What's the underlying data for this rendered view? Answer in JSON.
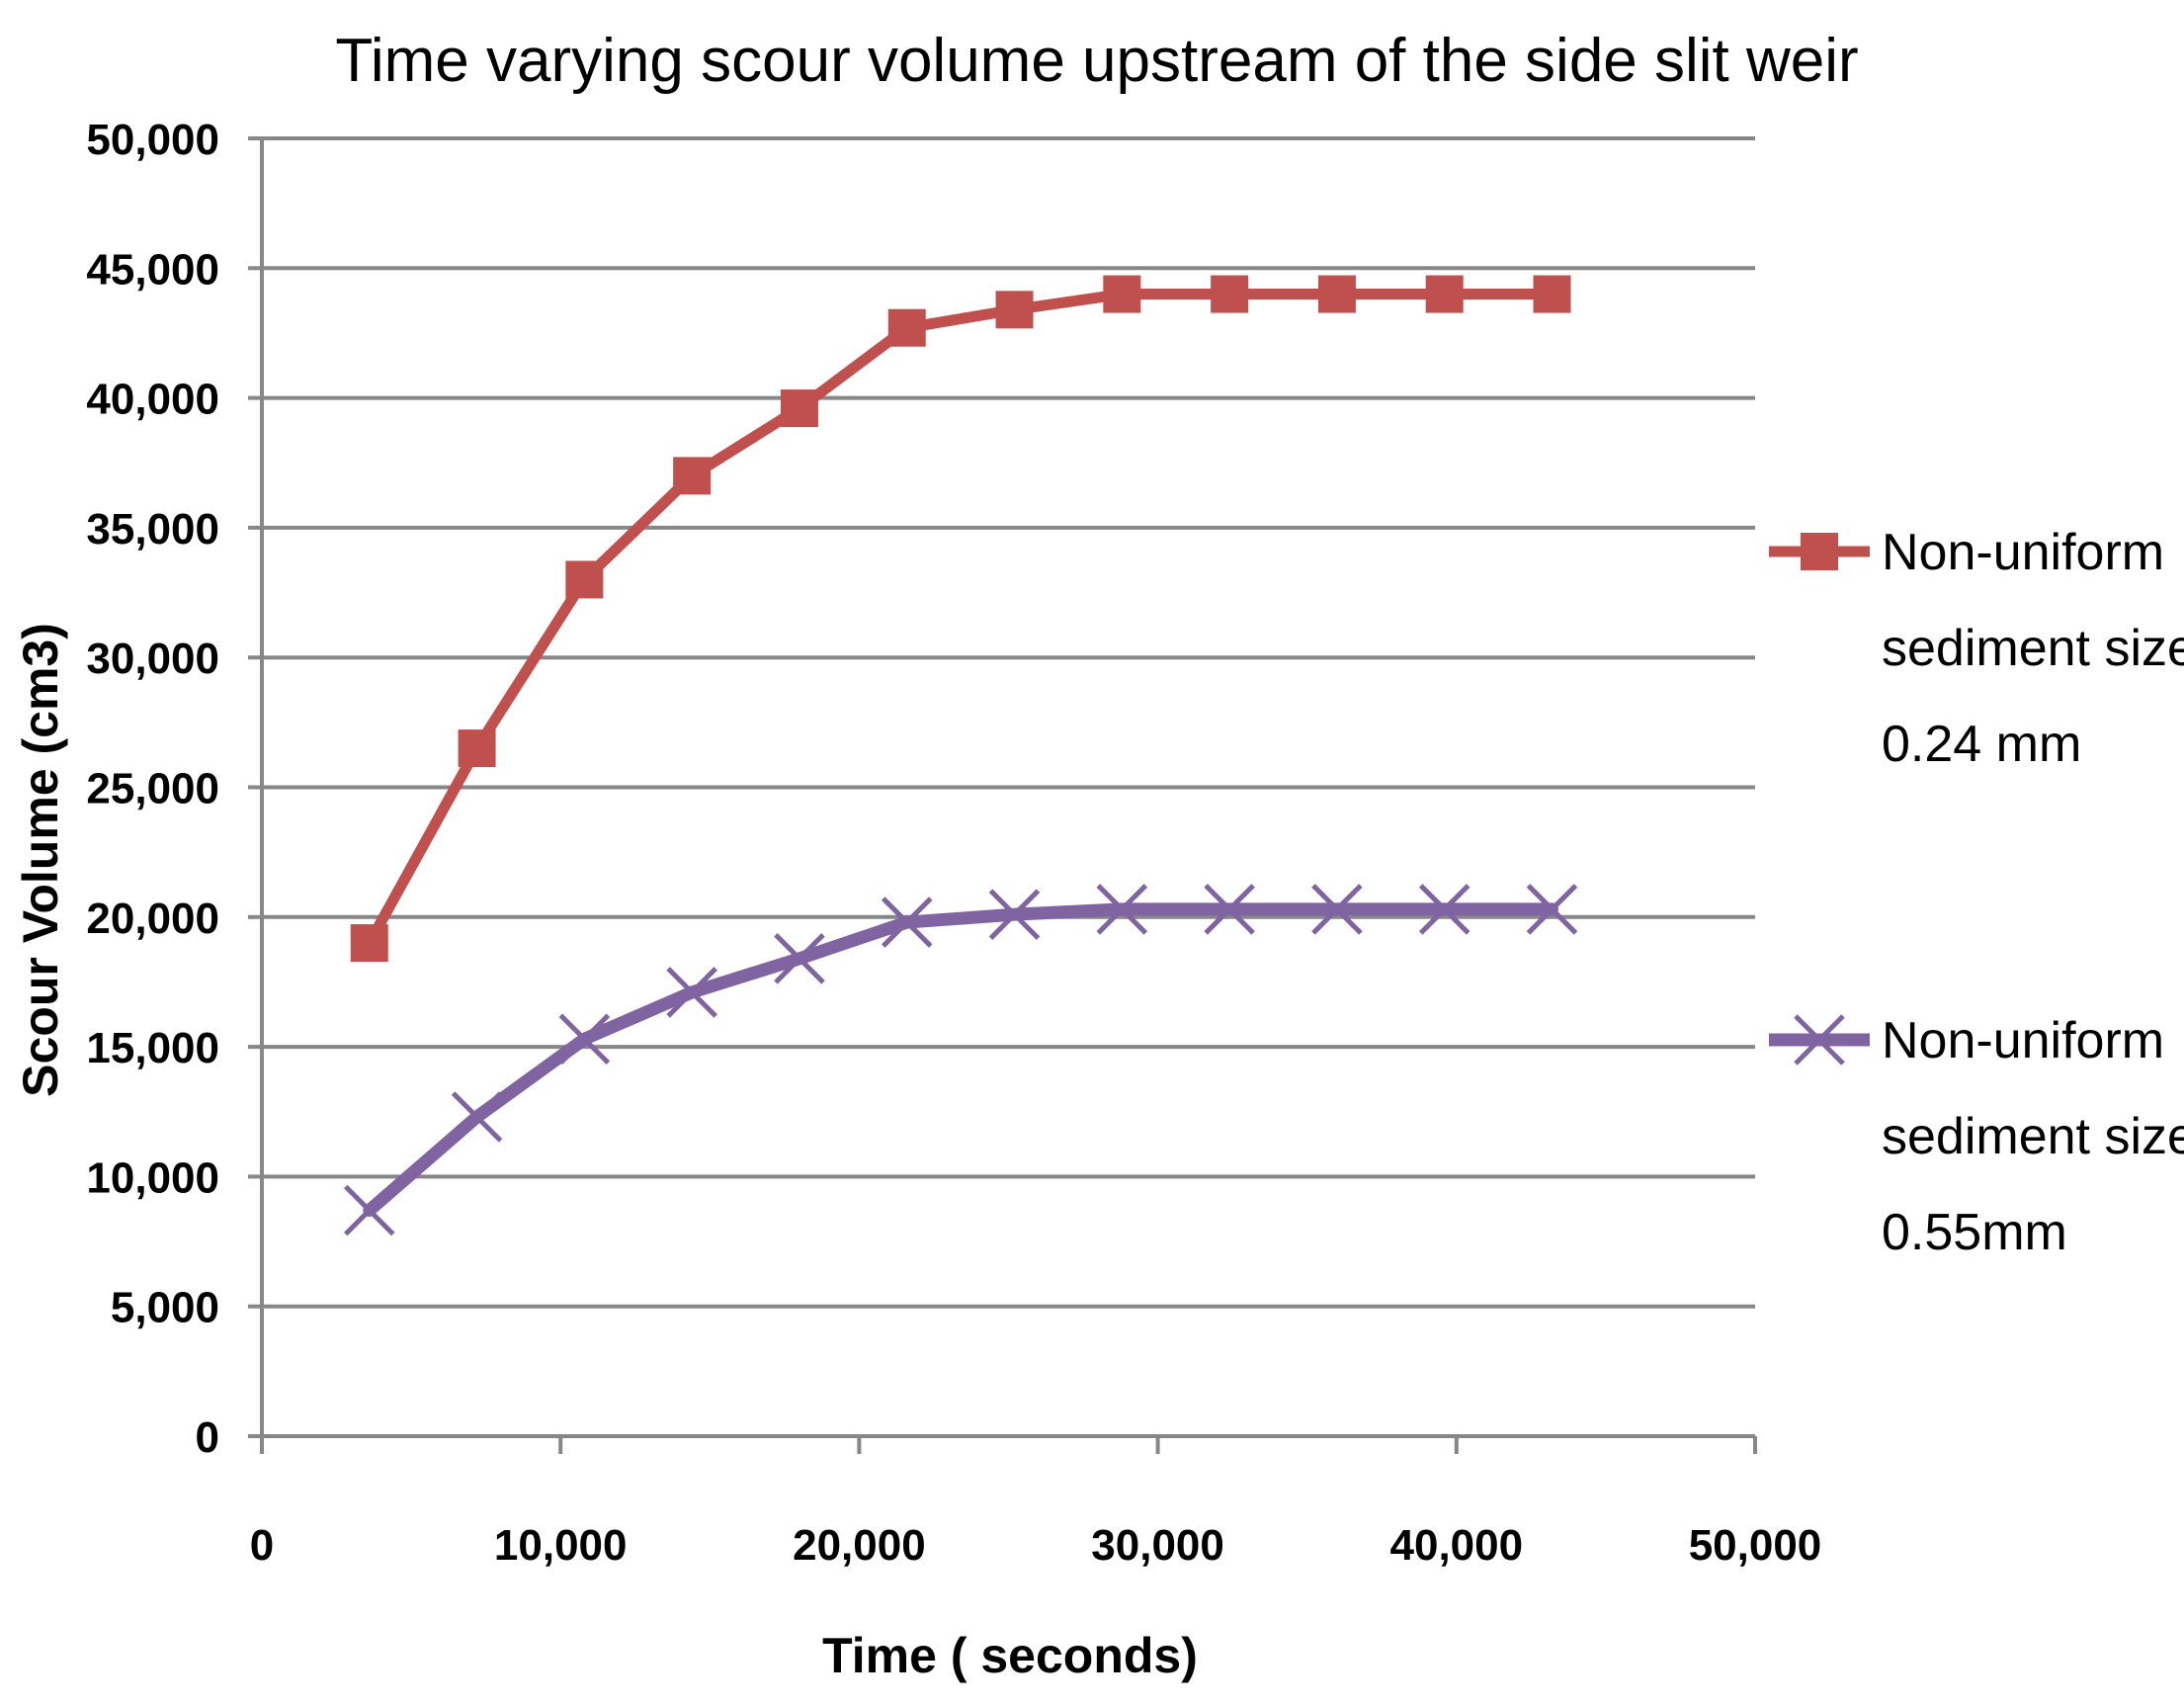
{
  "chart_data": {
    "type": "line",
    "title": "Time varying scour volume upstream of the side slit weir",
    "xlabel": "Time ( seconds)",
    "ylabel": "Scour Volume (cm3)",
    "xlim": [
      0,
      50000
    ],
    "ylim": [
      0,
      50000
    ],
    "xticks": [
      0,
      10000,
      20000,
      30000,
      40000,
      50000
    ],
    "yticks": [
      0,
      5000,
      10000,
      15000,
      20000,
      25000,
      30000,
      35000,
      40000,
      45000,
      50000
    ],
    "xtick_labels": [
      "0",
      "10,000",
      "20,000",
      "30,000",
      "40,000",
      "50,000"
    ],
    "ytick_labels": [
      "0",
      "5,000",
      "10,000",
      "15,000",
      "20,000",
      "25,000",
      "30,000",
      "35,000",
      "40,000",
      "45,000",
      "50,000"
    ],
    "grid": true,
    "legend_position": "right",
    "series": [
      {
        "name": "Non-uniform sediment size 0.24 mm",
        "legend_lines": [
          "Non-uniform",
          "sediment size",
          "0.24 mm"
        ],
        "color": "#c0504d",
        "marker": "square",
        "x": [
          3600,
          7200,
          10800,
          14400,
          18000,
          21600,
          25200,
          28800,
          32400,
          36000,
          39600,
          43200
        ],
        "y": [
          19000,
          26500,
          33000,
          37000,
          39600,
          42700,
          43400,
          44000,
          44000,
          44000,
          44000,
          44000
        ]
      },
      {
        "name": "Non-uniform sediment size 0.55mm",
        "legend_lines": [
          "Non-uniform",
          "sediment size",
          "0.55mm"
        ],
        "color": "#8064a2",
        "marker": "x",
        "x": [
          3600,
          7200,
          10800,
          14400,
          18000,
          21600,
          25200,
          28800,
          32400,
          36000,
          39600,
          43200
        ],
        "y": [
          8700,
          12300,
          15300,
          17100,
          18400,
          19800,
          20100,
          20300,
          20300,
          20300,
          20300,
          20300
        ]
      }
    ]
  }
}
